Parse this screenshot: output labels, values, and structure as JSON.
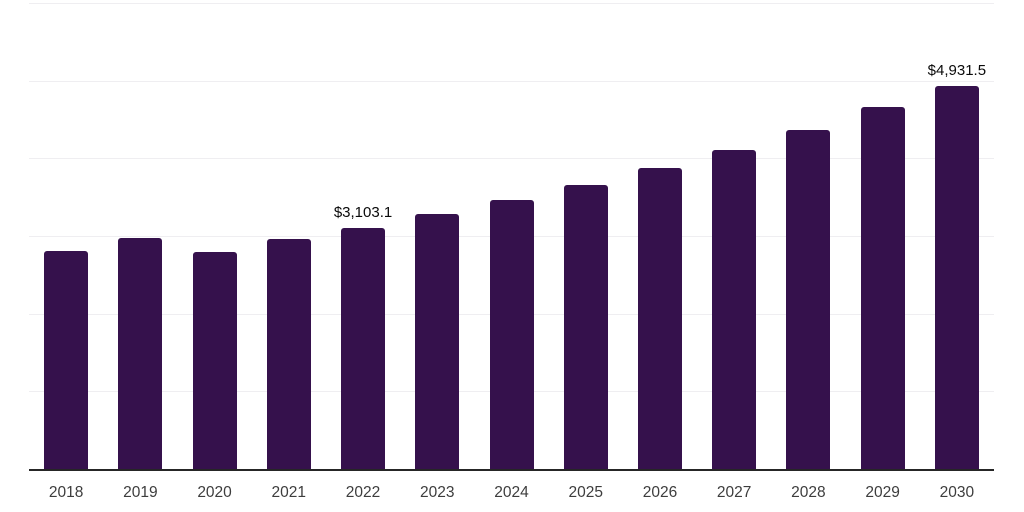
{
  "chart": {
    "background_color": "#ffffff",
    "bar_color": "#35114C",
    "axis_line_color": "#262626",
    "gridline_color": "#efeef1",
    "year_label_color": "#3d3d3d",
    "value_label_color": "#0a0a0a"
  },
  "chart_data": {
    "type": "bar",
    "title": "",
    "xlabel": "",
    "ylabel": "",
    "categories": [
      "2018",
      "2019",
      "2020",
      "2021",
      "2022",
      "2023",
      "2024",
      "2025",
      "2026",
      "2027",
      "2028",
      "2029",
      "2030"
    ],
    "values": [
      2805,
      2975,
      2790,
      2960,
      3103.1,
      3280,
      3465,
      3655,
      3875,
      4105,
      4360,
      4655,
      4931.5
    ],
    "value_labels": [
      "",
      "",
      "",
      "",
      "$3,103.1",
      "",
      "",
      "",
      "",
      "",
      "",
      "",
      "$4,931.5"
    ],
    "ylim": [
      0,
      6000
    ],
    "gridline_step": 1000,
    "grid": "horizontal",
    "legend_position": "none",
    "y_axis_tick_labels_visible": false
  }
}
